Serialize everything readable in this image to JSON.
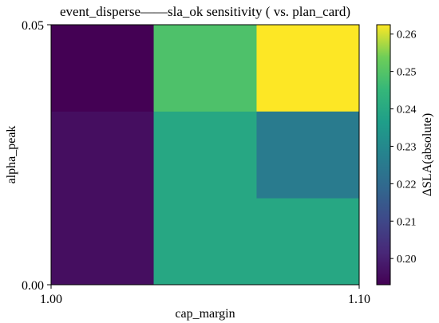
{
  "chart_data": {
    "type": "heatmap",
    "title": "event_disperse——sla_ok sensitivity ( vs. plan_card)",
    "xlabel": "cap_margin",
    "ylabel": "alpha_peak",
    "x_ticks": [
      "1.00",
      "1.10"
    ],
    "y_ticks": [
      "0.00",
      "0.05"
    ],
    "colorbar": {
      "label": "ΔSLA(absolute)",
      "ticks": [
        "0.20",
        "0.21",
        "0.22",
        "0.23",
        "0.24",
        "0.25",
        "0.26"
      ],
      "range": [
        0.193,
        0.2625
      ],
      "colormap": "viridis"
    },
    "cells": [
      {
        "x0": 1.0,
        "x1": 1.0333,
        "y0": 0.0333,
        "y1": 0.05,
        "value": 0.193
      },
      {
        "x0": 1.0333,
        "x1": 1.0667,
        "y0": 0.0333,
        "y1": 0.05,
        "value": 0.249
      },
      {
        "x0": 1.0667,
        "x1": 1.1,
        "y0": 0.0333,
        "y1": 0.05,
        "value": 0.2625
      },
      {
        "x0": 1.0,
        "x1": 1.0333,
        "y0": 0.0,
        "y1": 0.0333,
        "value": 0.196
      },
      {
        "x0": 1.0333,
        "x1": 1.1,
        "y0": 0.0,
        "y1": 0.0333,
        "value": 0.2395
      },
      {
        "x0": 1.0667,
        "x1": 1.1,
        "y0": 0.0167,
        "y1": 0.0333,
        "value": 0.2255
      }
    ]
  }
}
